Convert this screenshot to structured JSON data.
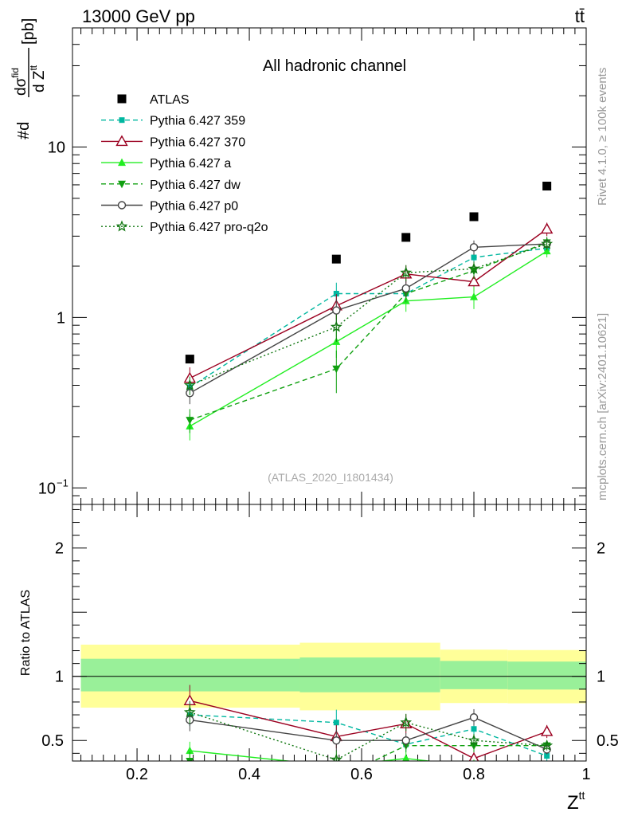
{
  "header": {
    "energy_label": "13000 GeV pp",
    "process_label": "tt̄"
  },
  "side_labels": {
    "rivet": "Rivet 4.1.0, ≥ 100k events",
    "mcplots": "mcplots.cern.ch [arXiv:2401.10621]"
  },
  "chart_data": [
    {
      "type": "line",
      "panel": "main",
      "title": "All hadronic channel",
      "watermark": "(ATLAS_2020_I1801434)",
      "ylabel_parts": {
        "prefix": "#d",
        "num": "dσ",
        "num_sup": "fid",
        "den": "d Z",
        "den_sup": "tt",
        "suffix": "[pb]"
      },
      "yscale": "log",
      "ylim": [
        0.08,
        50
      ],
      "xlim": [
        0.085,
        1.0
      ],
      "y_ticks": [
        {
          "value": 10,
          "label": "10"
        },
        {
          "value": 1,
          "label": "1"
        },
        {
          "value": 0.1,
          "label": "10",
          "sup": "−1"
        }
      ],
      "legend_position": "top-left",
      "x": [
        0.294,
        0.555,
        0.679,
        0.8,
        0.93
      ],
      "series": [
        {
          "name": "ATLAS",
          "key": "atlas",
          "color": "#000000",
          "marker": "square",
          "style": "none",
          "values": [
            0.57,
            2.2,
            2.95,
            3.9,
            5.9
          ]
        },
        {
          "name": "Pythia 6.427 359",
          "key": "p359",
          "color": "#00b7a0",
          "marker": "square-small",
          "style": "dashed",
          "values": [
            0.39,
            1.38,
            1.38,
            2.25,
            2.55
          ],
          "errors": [
            0.05,
            0.22,
            0.15,
            0.2,
            0.22
          ]
        },
        {
          "name": "Pythia 6.427 370",
          "key": "p370",
          "color": "#9b0020",
          "marker": "triangle-open",
          "style": "solid",
          "values": [
            0.44,
            1.17,
            1.8,
            1.62,
            3.3
          ],
          "errors": [
            0.07,
            0.2,
            0.22,
            0.2,
            0.3
          ]
        },
        {
          "name": "Pythia 6.427 a",
          "key": "pa",
          "color": "#22ee22",
          "marker": "triangle",
          "style": "solid",
          "values": [
            0.23,
            0.72,
            1.25,
            1.32,
            2.45
          ],
          "errors": [
            0.04,
            0.14,
            0.17,
            0.2,
            0.2
          ]
        },
        {
          "name": "Pythia 6.427 dw",
          "key": "pdw",
          "color": "#10a010",
          "marker": "triangle-down",
          "style": "dashed",
          "values": [
            0.25,
            0.5,
            1.38,
            1.88,
            2.75
          ],
          "errors": [
            0.04,
            0.14,
            0.15,
            0.2,
            0.22
          ]
        },
        {
          "name": "Pythia 6.427 p0",
          "key": "pp0",
          "color": "#444444",
          "marker": "circle-open",
          "style": "solid",
          "values": [
            0.36,
            1.1,
            1.48,
            2.58,
            2.7
          ],
          "errors": [
            0.05,
            0.18,
            0.17,
            0.25,
            0.22
          ]
        },
        {
          "name": "Pythia 6.427 pro-q2o",
          "key": "pq2o",
          "color": "#117711",
          "marker": "star",
          "style": "dotted",
          "values": [
            0.4,
            0.88,
            1.83,
            1.93,
            2.7
          ],
          "errors": [
            0.05,
            0.16,
            0.2,
            0.2,
            0.22
          ]
        }
      ]
    },
    {
      "type": "line",
      "panel": "ratio",
      "ylabel": "Ratio to ATLAS",
      "xlabel": "Z",
      "xlabel_sup": "tt",
      "ylim": [
        0.34,
        2.34
      ],
      "xlim": [
        0.085,
        1.0
      ],
      "x_ticks": [
        0.2,
        0.4,
        0.6,
        0.8,
        1
      ],
      "y_ticks": [
        0.5,
        1,
        2
      ],
      "reference_line": 1,
      "bands": [
        {
          "x0": 0.1,
          "x1": 0.49,
          "outer": [
            0.756,
            1.247
          ],
          "inner": [
            0.883,
            1.137
          ]
        },
        {
          "x0": 0.49,
          "x1": 0.74,
          "outer": [
            0.735,
            1.262
          ],
          "inner": [
            0.876,
            1.147
          ]
        },
        {
          "x0": 0.74,
          "x1": 0.86,
          "outer": [
            0.792,
            1.208
          ],
          "inner": [
            0.9,
            1.12
          ]
        },
        {
          "x0": 0.86,
          "x1": 1.0,
          "outer": [
            0.79,
            1.205
          ],
          "inner": [
            0.897,
            1.115
          ]
        }
      ],
      "x": [
        0.294,
        0.555,
        0.679,
        0.8,
        0.93
      ],
      "series": [
        {
          "name": "Pythia 6.427 359",
          "key": "p359",
          "values": [
            0.7,
            0.64,
            0.47,
            0.59,
            0.38
          ]
        },
        {
          "name": "Pythia 6.427 370",
          "key": "p370",
          "values": [
            0.81,
            0.53,
            0.63,
            0.36,
            0.57
          ]
        },
        {
          "name": "Pythia 6.427 a",
          "key": "pa",
          "values": [
            0.42,
            0.3,
            0.36,
            0.3,
            0.3
          ]
        },
        {
          "name": "Pythia 6.427 dw",
          "key": "pdw",
          "values": [
            0.34,
            0.2,
            0.46,
            0.46,
            0.46
          ]
        },
        {
          "name": "Pythia 6.427 p0",
          "key": "pp0",
          "values": [
            0.66,
            0.5,
            0.5,
            0.68,
            0.43
          ]
        },
        {
          "name": "Pythia 6.427 pro-q2o",
          "key": "pq2o",
          "values": [
            0.72,
            0.35,
            0.64,
            0.5,
            0.46
          ]
        }
      ]
    }
  ]
}
